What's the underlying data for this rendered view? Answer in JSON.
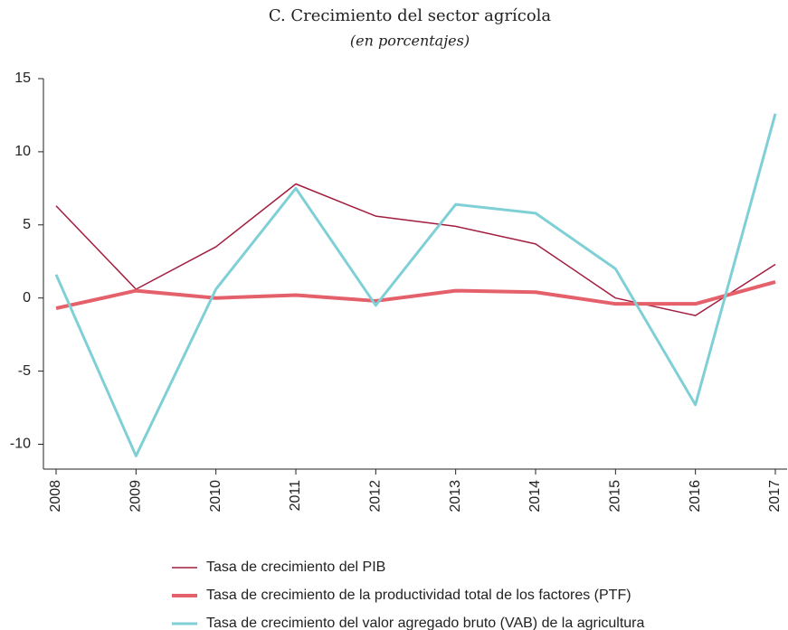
{
  "chart_data": {
    "type": "line",
    "title": "C. Crecimiento del sector agrícola",
    "subtitle": "(en porcentajes)",
    "categories": [
      "2008",
      "2009",
      "2010",
      "2011",
      "2012",
      "2013",
      "2014",
      "2015",
      "2016",
      "2017"
    ],
    "series": [
      {
        "name": "Tasa de crecimiento del PIB",
        "color": "#a31d3f",
        "width": 1.5,
        "values": [
          6.3,
          0.6,
          3.5,
          7.8,
          5.6,
          4.9,
          3.7,
          0.0,
          -1.2,
          2.3
        ]
      },
      {
        "name": "Tasa de crecimiento de la productividad total de los factores (PTF)",
        "color": "#e4606b",
        "width": 4,
        "values": [
          -0.7,
          0.5,
          0.0,
          0.2,
          -0.2,
          0.5,
          0.4,
          -0.4,
          -0.4,
          1.1
        ]
      },
      {
        "name": "Tasa de crecimiento del valor agregado bruto (VAB) de la agricultura",
        "color": "#7fd0d6",
        "width": 3,
        "values": [
          1.6,
          -10.8,
          0.6,
          7.5,
          -0.5,
          6.4,
          5.8,
          2.0,
          -7.3,
          12.6
        ]
      }
    ],
    "ylim": [
      -11.7,
      15
    ],
    "yticks": [
      -10,
      -5,
      0,
      5,
      10,
      15
    ],
    "grid": false
  }
}
